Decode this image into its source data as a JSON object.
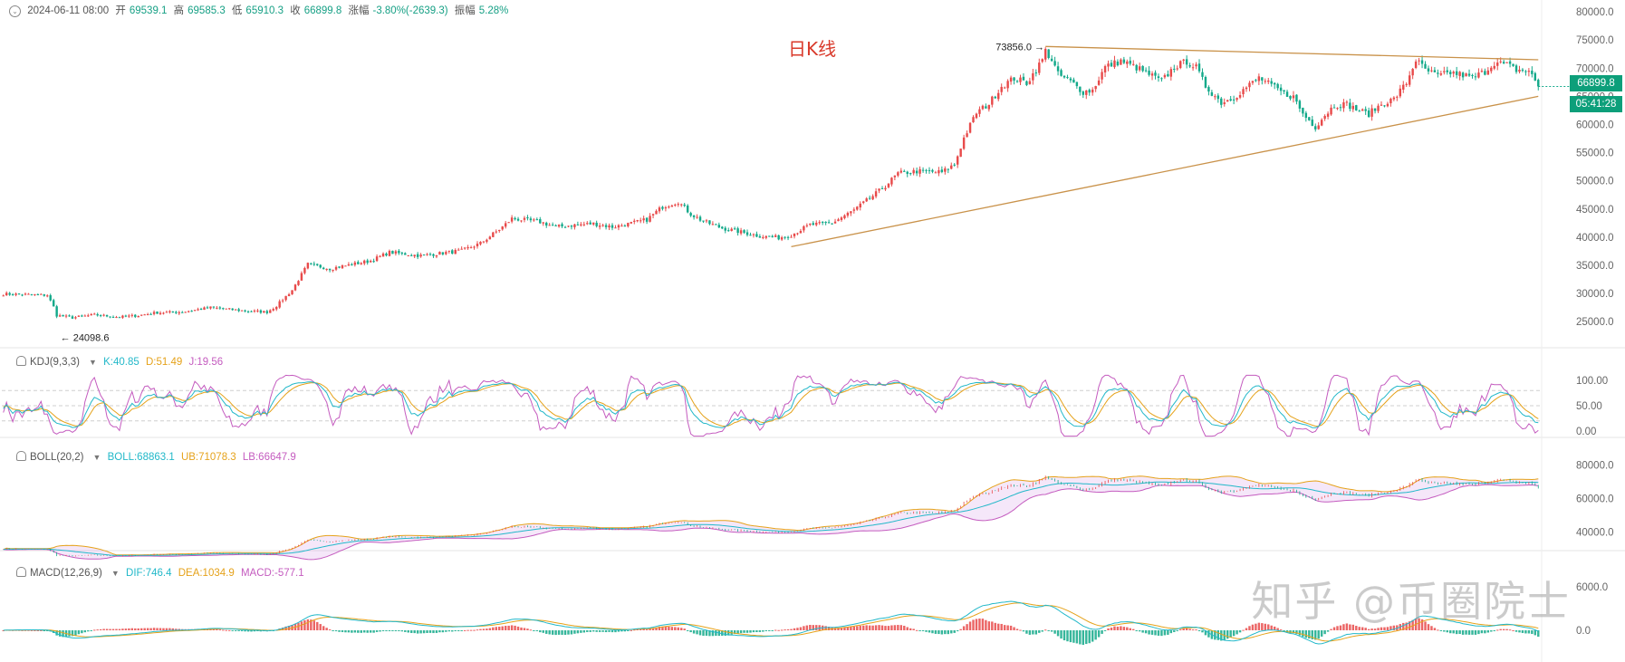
{
  "header": {
    "date": "2024-06-11 08:00",
    "open_label": "开",
    "open": "69539.1",
    "high_label": "高",
    "high": "69585.3",
    "low_label": "低",
    "low": "65910.3",
    "close_label": "收",
    "close": "66899.8",
    "change_label": "涨幅",
    "change": "-3.80%(-2639.3)",
    "amplitude_label": "振幅",
    "amplitude": "5.28%"
  },
  "chart_title": "日K线",
  "watermark": "知乎 @币圈院士",
  "price_tag": "66899.8",
  "countdown_tag": "05:41:28",
  "annotations": {
    "high_label": "73856.0",
    "low_label": "24098.6"
  },
  "colors": {
    "up": "#e84a4a",
    "down": "#13a98a",
    "trend": "#c9924a",
    "tag": "#0d9f7a"
  },
  "indicators": {
    "kdj": {
      "name": "KDJ(9,3,3)",
      "k": "K:40.85",
      "d": "D:51.49",
      "j": "J:19.56",
      "ticks": [
        "100.00",
        "50.00",
        "0.00"
      ]
    },
    "boll": {
      "name": "BOLL(20,2)",
      "boll": "BOLL:68863.1",
      "ub": "UB:71078.3",
      "lb": "LB:66647.9",
      "ticks": [
        "80000.0",
        "60000.0",
        "40000.0"
      ]
    },
    "macd": {
      "name": "MACD(12,26,9)",
      "dif": "DIF:746.4",
      "dea": "DEA:1034.9",
      "macd": "MACD:-577.1",
      "ticks": [
        "6000.0",
        "0.0"
      ]
    }
  },
  "chart_data": {
    "type": "candlestick",
    "title": "日K线",
    "y_ticks": [
      80000,
      75000,
      70000,
      65000,
      60000,
      55000,
      50000,
      45000,
      40000,
      35000,
      30000,
      25000
    ],
    "ylim": [
      21000,
      80500
    ],
    "close_path": [
      [
        0,
        29900
      ],
      [
        14,
        29700
      ],
      [
        16,
        27600
      ],
      [
        17,
        26100
      ],
      [
        22,
        25700
      ],
      [
        29,
        26200
      ],
      [
        37,
        25800
      ],
      [
        43,
        26100
      ],
      [
        49,
        26600
      ],
      [
        57,
        26700
      ],
      [
        66,
        27500
      ],
      [
        77,
        26900
      ],
      [
        84,
        26700
      ],
      [
        87,
        27800
      ],
      [
        92,
        30600
      ],
      [
        97,
        35200
      ],
      [
        104,
        34400
      ],
      [
        117,
        35800
      ],
      [
        123,
        37300
      ],
      [
        133,
        36700
      ],
      [
        146,
        37600
      ],
      [
        152,
        38900
      ],
      [
        159,
        41800
      ],
      [
        162,
        43300
      ],
      [
        171,
        42700
      ],
      [
        176,
        41800
      ],
      [
        181,
        42100
      ],
      [
        188,
        42400
      ],
      [
        194,
        41800
      ],
      [
        198,
        42200
      ],
      [
        205,
        43100
      ],
      [
        210,
        45400
      ],
      [
        215,
        46300
      ],
      [
        219,
        44100
      ],
      [
        223,
        42800
      ],
      [
        229,
        41600
      ],
      [
        235,
        40900
      ],
      [
        241,
        40200
      ],
      [
        247,
        39900
      ],
      [
        251,
        40400
      ],
      [
        257,
        42200
      ],
      [
        264,
        42500
      ],
      [
        271,
        44800
      ],
      [
        277,
        47300
      ],
      [
        281,
        49100
      ],
      [
        285,
        51300
      ],
      [
        291,
        51700
      ],
      [
        299,
        51500
      ],
      [
        303,
        52900
      ],
      [
        306,
        57600
      ],
      [
        310,
        62100
      ],
      [
        314,
        63700
      ],
      [
        318,
        66800
      ],
      [
        322,
        68200
      ],
      [
        326,
        67400
      ],
      [
        329,
        69700
      ],
      [
        331,
        71500
      ],
      [
        332,
        73100
      ],
      [
        334,
        71500
      ],
      [
        336,
        68900
      ],
      [
        340,
        67600
      ],
      [
        344,
        65800
      ],
      [
        347,
        66100
      ],
      [
        351,
        70200
      ],
      [
        356,
        71300
      ],
      [
        361,
        70100
      ],
      [
        365,
        68900
      ],
      [
        369,
        67700
      ],
      [
        373,
        70200
      ],
      [
        377,
        71200
      ],
      [
        380,
        70100
      ],
      [
        383,
        66800
      ],
      [
        388,
        63900
      ],
      [
        392,
        64800
      ],
      [
        396,
        66600
      ],
      [
        400,
        68300
      ],
      [
        404,
        66900
      ],
      [
        408,
        65500
      ],
      [
        411,
        64900
      ],
      [
        414,
        61900
      ],
      [
        418,
        59600
      ],
      [
        421,
        61700
      ],
      [
        424,
        63400
      ],
      [
        428,
        63600
      ],
      [
        432,
        62400
      ],
      [
        435,
        61900
      ],
      [
        439,
        63600
      ],
      [
        443,
        64500
      ],
      [
        447,
        67400
      ],
      [
        450,
        71500
      ],
      [
        453,
        69700
      ],
      [
        457,
        68600
      ],
      [
        461,
        69200
      ],
      [
        465,
        68800
      ],
      [
        468,
        68300
      ],
      [
        472,
        69400
      ],
      [
        475,
        71000
      ],
      [
        479,
        70600
      ],
      [
        482,
        69700
      ],
      [
        486,
        69500
      ],
      [
        489,
        66900
      ]
    ],
    "annotations": [
      {
        "label": "73856.0",
        "x": 332,
        "y": 73856
      },
      {
        "label": "24098.6",
        "x": 17,
        "y": 24098.6
      }
    ],
    "trendlines": [
      {
        "from": [
          332,
          73856
        ],
        "to": [
          489,
          71500
        ]
      },
      {
        "from": [
          251,
          38300
        ],
        "to": [
          489,
          65000
        ]
      }
    ],
    "kdj": {
      "k": 40.85,
      "d": 51.49,
      "j": 19.56,
      "ylim": [
        0,
        100
      ]
    },
    "boll": {
      "boll": 68863.1,
      "ub": 71078.3,
      "lb": 66647.9
    },
    "macd": {
      "dif": 746.4,
      "dea": 1034.9,
      "macd": -577.1
    }
  }
}
